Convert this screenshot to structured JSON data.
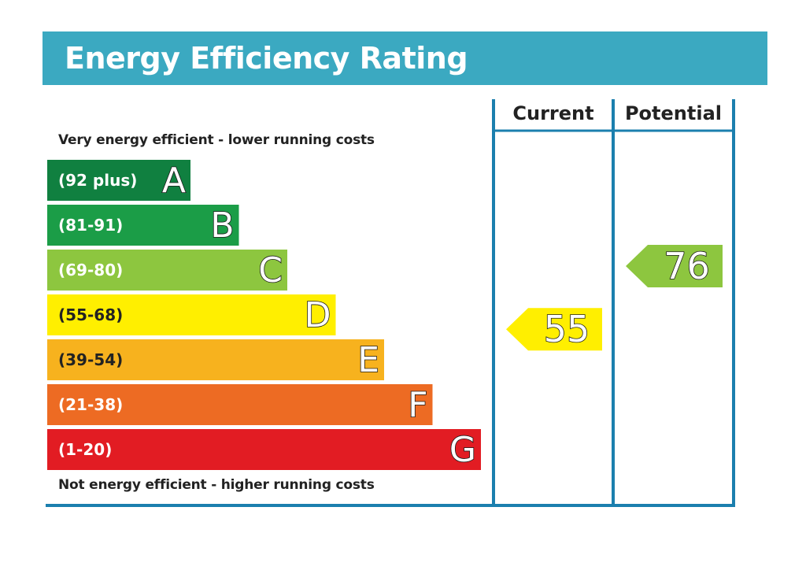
{
  "header": {
    "title": "Energy Efficiency Rating"
  },
  "captions": {
    "top": "Very energy efficient - lower running costs",
    "bottom": "Not energy efficient - higher running costs"
  },
  "chart_data": {
    "type": "bar",
    "title": "Energy Efficiency Rating",
    "columns": [
      "Current",
      "Potential"
    ],
    "bands": [
      {
        "range": "(92 plus)",
        "letter": "A",
        "min": 92,
        "max": 100,
        "color": "#108040"
      },
      {
        "range": "(81-91)",
        "letter": "B",
        "min": 81,
        "max": 91,
        "color": "#1b9d47"
      },
      {
        "range": "(69-80)",
        "letter": "C",
        "min": 69,
        "max": 80,
        "color": "#8dc63f"
      },
      {
        "range": "(55-68)",
        "letter": "D",
        "min": 55,
        "max": 68,
        "color": "#ffef00"
      },
      {
        "range": "(39-54)",
        "letter": "E",
        "min": 39,
        "max": 54,
        "color": "#f7b21e"
      },
      {
        "range": "(21-38)",
        "letter": "F",
        "min": 21,
        "max": 38,
        "color": "#ed6b23"
      },
      {
        "range": "(1-20)",
        "letter": "G",
        "min": 1,
        "max": 20,
        "color": "#e21c23"
      }
    ],
    "ratings": [
      {
        "column": "Current",
        "value": 55,
        "band": "D",
        "color": "#ffef00"
      },
      {
        "column": "Potential",
        "value": 76,
        "band": "C",
        "color": "#8dc63f"
      }
    ]
  }
}
